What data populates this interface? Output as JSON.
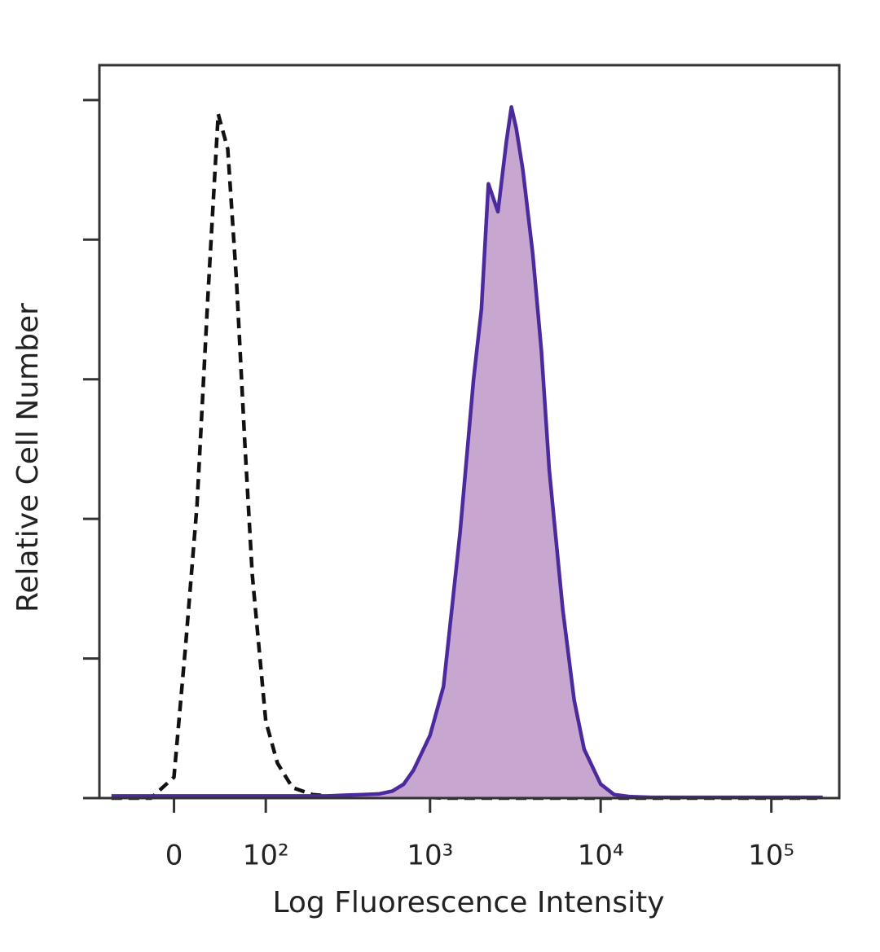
{
  "chart_data": {
    "type": "histogram-overlay",
    "x_label": "Log Fluorescence Intensity",
    "y_label": "Relative Cell Number",
    "x_scale": "biexponential",
    "xlim": [
      -75,
      250000
    ],
    "xticks": [
      0,
      {
        "value": 100,
        "label": "10²"
      },
      {
        "value": 1000,
        "label": "10³"
      },
      {
        "value": 10000,
        "label": "10⁴"
      },
      {
        "value": 100000,
        "label": "10⁵"
      }
    ],
    "ylim": [
      0,
      105
    ],
    "yticks": [
      0,
      20,
      40,
      60,
      80,
      100
    ],
    "x": [
      -60,
      -40,
      -20,
      0,
      10,
      20,
      30,
      40,
      50,
      60,
      70,
      80,
      100,
      120,
      150,
      200,
      250,
      300,
      400,
      500,
      600,
      700,
      800,
      1000,
      1200,
      1500,
      1800,
      2000,
      2200,
      2500,
      2800,
      3000,
      3200,
      3500,
      4000,
      4500,
      5000,
      6000,
      7000,
      8000,
      10000,
      12000,
      15000,
      20000,
      50000,
      100000,
      200000
    ],
    "series": [
      {
        "color": "#111111",
        "line_style": "dashed",
        "fill": "none",
        "values": [
          0,
          0,
          0,
          3,
          22,
          42,
          72,
          98,
          93,
          74,
          51,
          32,
          11,
          5,
          1.5,
          0.5,
          0.3,
          0.3,
          0.3,
          0.2,
          0.2,
          0.2,
          0.2,
          0.1,
          0,
          0,
          0,
          0,
          0,
          0,
          0,
          0,
          0,
          0,
          0,
          0,
          0,
          0,
          0,
          0,
          0,
          0,
          0,
          0,
          0,
          0,
          0
        ]
      },
      {
        "color": "#4a2a9c",
        "line_style": "solid",
        "fill": "#c7a6cf",
        "values": [
          0.3,
          0.3,
          0.3,
          0.3,
          0.3,
          0.3,
          0.3,
          0.3,
          0.3,
          0.3,
          0.3,
          0.3,
          0.3,
          0.3,
          0.3,
          0.3,
          0.3,
          0.4,
          0.5,
          0.6,
          1,
          2,
          4,
          9,
          16,
          38,
          60,
          70,
          88,
          84,
          94,
          99,
          96,
          90,
          78,
          64,
          47,
          27,
          14,
          7,
          2,
          0.5,
          0.2,
          0.1,
          0.1,
          0.1,
          0.1
        ]
      }
    ]
  }
}
